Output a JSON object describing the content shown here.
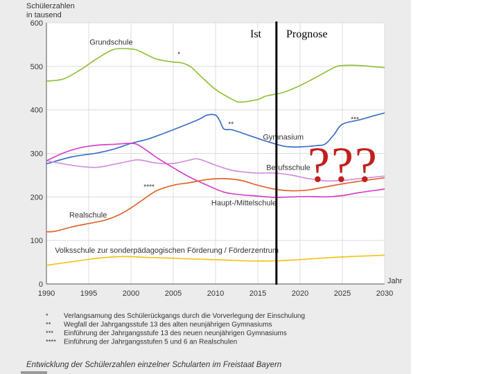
{
  "chart_data": {
    "type": "line",
    "title": "Schülerzahlen",
    "subtitle": "in tausend",
    "xlabel": "Jahr",
    "ylabel": "",
    "xlim": [
      1990,
      2030
    ],
    "ylim": [
      0,
      600
    ],
    "x_ticks": [
      "1990",
      "1995",
      "2000",
      "2005",
      "2010",
      "2015",
      "2020",
      "2025",
      "2030"
    ],
    "y_ticks": [
      "0",
      "100",
      "200",
      "300",
      "400",
      "500",
      "600"
    ],
    "grid": true,
    "divider_year": 2017.2,
    "period_labels": {
      "ist": "Ist",
      "prognose": "Prognose"
    },
    "question_marks": "???",
    "series": [
      {
        "name": "Grundschule",
        "color": "#92c13c",
        "points": [
          [
            1990,
            466
          ],
          [
            1992,
            471
          ],
          [
            1994,
            492
          ],
          [
            1996,
            518
          ],
          [
            1998,
            539
          ],
          [
            2000,
            540
          ],
          [
            2001,
            535
          ],
          [
            2003,
            517
          ],
          [
            2005,
            510
          ],
          [
            2006,
            508
          ],
          [
            2007,
            500
          ],
          [
            2008,
            482
          ],
          [
            2010,
            447
          ],
          [
            2012,
            424
          ],
          [
            2013,
            418
          ],
          [
            2015,
            424
          ],
          [
            2016,
            432
          ],
          [
            2018,
            440
          ],
          [
            2020,
            456
          ],
          [
            2022,
            476
          ],
          [
            2024,
            497
          ],
          [
            2025,
            502
          ],
          [
            2027,
            502
          ],
          [
            2030,
            497
          ]
        ]
      },
      {
        "name": "Gymnasium",
        "color": "#3a6fc4",
        "points": [
          [
            1990,
            276
          ],
          [
            1993,
            292
          ],
          [
            1996,
            301
          ],
          [
            1998,
            310
          ],
          [
            2000,
            323
          ],
          [
            2002,
            333
          ],
          [
            2004,
            347
          ],
          [
            2006,
            362
          ],
          [
            2008,
            378
          ],
          [
            2009,
            388
          ],
          [
            2010,
            388
          ],
          [
            2010.5,
            375
          ],
          [
            2011,
            356
          ],
          [
            2012,
            354
          ],
          [
            2014,
            341
          ],
          [
            2016,
            328
          ],
          [
            2018,
            317
          ],
          [
            2019,
            315
          ],
          [
            2020,
            315
          ],
          [
            2022,
            318
          ],
          [
            2023,
            322
          ],
          [
            2024,
            343
          ],
          [
            2025,
            367
          ],
          [
            2027,
            377
          ],
          [
            2029,
            388
          ],
          [
            2030,
            393
          ]
        ]
      },
      {
        "name": "Berufsschule",
        "color": "#d28fdc",
        "points": [
          [
            1990,
            283
          ],
          [
            1992,
            276
          ],
          [
            1994,
            270
          ],
          [
            1996,
            268
          ],
          [
            1998,
            275
          ],
          [
            2000,
            283
          ],
          [
            2001,
            285
          ],
          [
            2003,
            278
          ],
          [
            2005,
            277
          ],
          [
            2007,
            285
          ],
          [
            2008,
            287
          ],
          [
            2010,
            273
          ],
          [
            2012,
            261
          ],
          [
            2014,
            256
          ],
          [
            2015,
            255
          ],
          [
            2017,
            255
          ],
          [
            2019,
            250
          ],
          [
            2021,
            242
          ],
          [
            2023,
            237
          ],
          [
            2025,
            238
          ],
          [
            2027,
            242
          ],
          [
            2030,
            248
          ]
        ]
      },
      {
        "name": "Haupt-/Mittelschule",
        "color": "#d640c8",
        "points": [
          [
            1990,
            283
          ],
          [
            1992,
            301
          ],
          [
            1994,
            313
          ],
          [
            1996,
            319
          ],
          [
            1998,
            321
          ],
          [
            2000,
            323
          ],
          [
            2001,
            318
          ],
          [
            2003,
            291
          ],
          [
            2005,
            267
          ],
          [
            2007,
            245
          ],
          [
            2009,
            227
          ],
          [
            2011,
            211
          ],
          [
            2013,
            205
          ],
          [
            2015,
            202
          ],
          [
            2017,
            199
          ],
          [
            2019,
            200
          ],
          [
            2021,
            201
          ],
          [
            2023,
            200
          ],
          [
            2025,
            203
          ],
          [
            2027,
            210
          ],
          [
            2030,
            218
          ]
        ]
      },
      {
        "name": "Realschule",
        "color": "#e3622a",
        "points": [
          [
            1990,
            120
          ],
          [
            1991,
            121
          ],
          [
            1993,
            131
          ],
          [
            1995,
            139
          ],
          [
            1997,
            147
          ],
          [
            1999,
            163
          ],
          [
            2001,
            188
          ],
          [
            2003,
            214
          ],
          [
            2005,
            227
          ],
          [
            2007,
            233
          ],
          [
            2009,
            240
          ],
          [
            2011,
            242
          ],
          [
            2013,
            238
          ],
          [
            2015,
            227
          ],
          [
            2017,
            218
          ],
          [
            2019,
            214
          ],
          [
            2021,
            216
          ],
          [
            2023,
            223
          ],
          [
            2025,
            230
          ],
          [
            2027,
            236
          ],
          [
            2030,
            244
          ]
        ]
      },
      {
        "name": "Volksschule zur sonderpädagogischen Förderung / Förderzentrum",
        "color": "#f5c218",
        "points": [
          [
            1990,
            43
          ],
          [
            1993,
            51
          ],
          [
            1996,
            59
          ],
          [
            1999,
            63
          ],
          [
            2002,
            61
          ],
          [
            2005,
            59
          ],
          [
            2008,
            57
          ],
          [
            2011,
            55
          ],
          [
            2014,
            53
          ],
          [
            2017,
            53
          ],
          [
            2020,
            56
          ],
          [
            2023,
            60
          ],
          [
            2026,
            63
          ],
          [
            2030,
            66
          ]
        ]
      }
    ],
    "annotations": [
      {
        "mark": "*",
        "year": 2005.5,
        "value": 523
      },
      {
        "mark": "**",
        "year": 2011.5,
        "value": 362
      },
      {
        "mark": "***",
        "year": 2026,
        "value": 373
      },
      {
        "mark": "****",
        "year": 2001.5,
        "value": 218
      }
    ],
    "footnotes": [
      {
        "mark": "*",
        "text": "Verlangsamung des Schülerückgangs durch die Vorverlegung der Einschulung"
      },
      {
        "mark": "**",
        "text": "Wegfall der Jahrgangsstufe 13 des alten neunjährigen Gymnasiums"
      },
      {
        "mark": "***",
        "text": "Einführung der Jahrgangsstufe 13 des neuen neunjährigen Gymnasiums"
      },
      {
        "mark": "****",
        "text": "Einführung der Jahrgangsstufen 5 und 6 an Realschulen"
      }
    ],
    "caption": "Entwicklung der Schülerzahlen einzelner Schularten im Freistaat Bayern"
  }
}
